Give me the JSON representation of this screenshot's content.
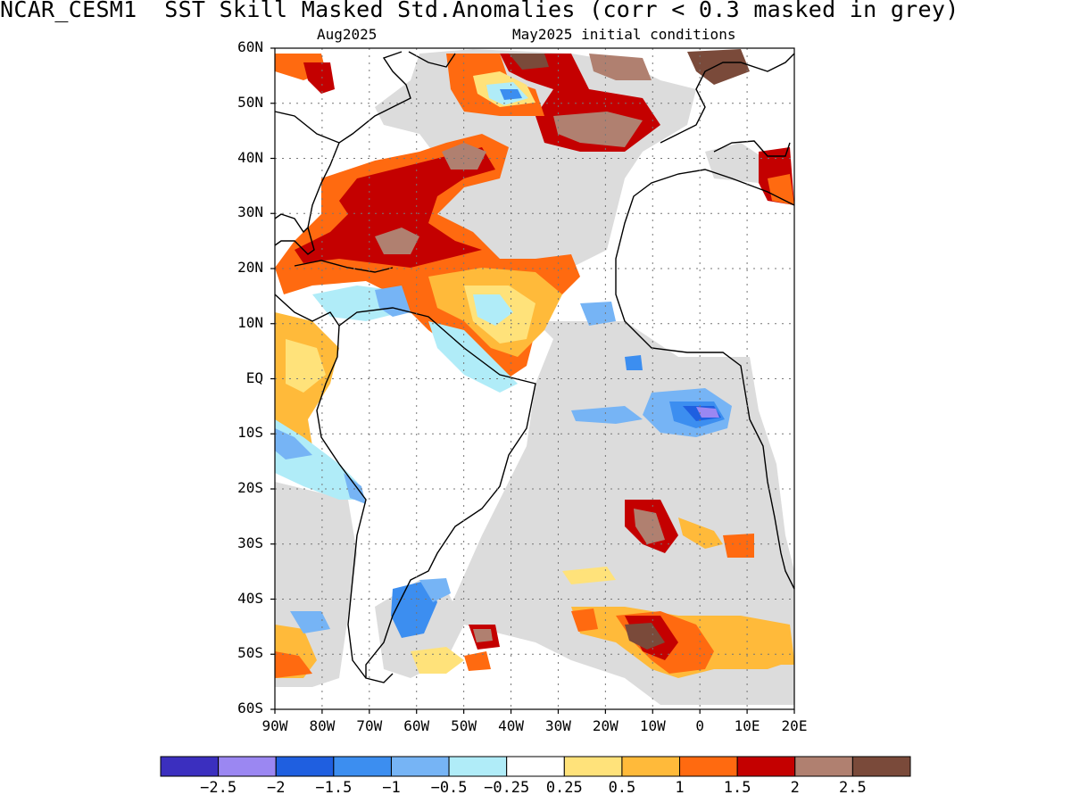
{
  "title": "NCAR_CESM1  SST Skill Masked Std.Anomalies (corr < 0.3 masked in grey)",
  "subtitle_left": "Aug2025",
  "subtitle_right": "May2025 initial conditions",
  "lat_labels": [
    "60N",
    "50N",
    "40N",
    "30N",
    "20N",
    "10N",
    "EQ",
    "10S",
    "20S",
    "30S",
    "40S",
    "50S",
    "60S"
  ],
  "lon_labels": [
    "90W",
    "80W",
    "70W",
    "60W",
    "50W",
    "40W",
    "30W",
    "20W",
    "10W",
    "0",
    "10E",
    "20E"
  ],
  "colorbar": {
    "colors": [
      "#3b2fbf",
      "#9b87f2",
      "#1f5fe0",
      "#3c8ef0",
      "#76b4f5",
      "#b0ecf8",
      "#ffffff",
      "#ffe27a",
      "#ffba3a",
      "#ff6a10",
      "#c40000",
      "#b08070",
      "#7a4a3a"
    ],
    "labels": [
      "-2.5",
      "-2",
      "-1.5",
      "-1",
      "-0.5",
      "-0.25",
      "0.25",
      "0.5",
      "1",
      "1.5",
      "2",
      "2.5"
    ]
  },
  "mask_color": "#dcdcdc"
}
